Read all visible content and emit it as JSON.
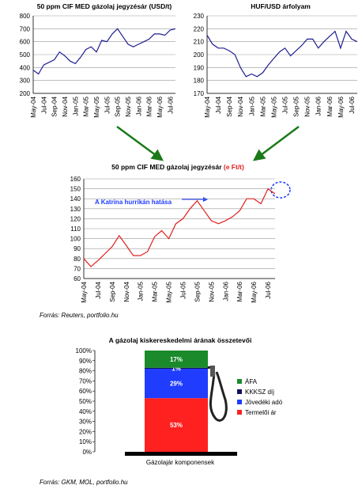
{
  "chart_data": [
    {
      "type": "line",
      "title": "50 ppm CIF MED gázolaj jegyzésár (USD/t)",
      "categories": [
        "May-04",
        null,
        "Jul-04",
        null,
        "Sep-04",
        null,
        "Nov-04",
        null,
        "Jan-05",
        null,
        "Mar-05",
        null,
        "May-05",
        null,
        "Jul-05",
        null,
        "Sep-05",
        null,
        "Nov-05",
        null,
        "Jan-06",
        null,
        "Mar-06",
        null,
        "May-06",
        null,
        "Jul-06",
        null
      ],
      "values": [
        380,
        350,
        420,
        440,
        460,
        520,
        490,
        450,
        430,
        480,
        540,
        560,
        520,
        610,
        600,
        660,
        700,
        640,
        580,
        560,
        580,
        600,
        620,
        660,
        660,
        650,
        690,
        700
      ],
      "color": "#1f1f8f",
      "ylim": [
        200,
        800
      ],
      "yticks": [
        200,
        300,
        400,
        500,
        600,
        700,
        800
      ],
      "grid": true
    },
    {
      "type": "line",
      "title": "HUF/USD árfolyam",
      "categories": [
        "May-04",
        null,
        "Jul-04",
        null,
        "Sep-04",
        null,
        "Nov-04",
        null,
        "Jan-05",
        null,
        "Mar-05",
        null,
        "May-05",
        null,
        "Jul-05",
        null,
        "Sep-05",
        null,
        "Nov-05",
        null,
        "Jan-06",
        null,
        "Mar-06",
        null,
        "May-06",
        null,
        "Jul-06",
        null
      ],
      "values": [
        215,
        208,
        205,
        205,
        203,
        200,
        190,
        183,
        185,
        183,
        186,
        192,
        197,
        202,
        205,
        199,
        203,
        207,
        212,
        212,
        205,
        210,
        214,
        218,
        205,
        218,
        212,
        210
      ],
      "color": "#1f1f8f",
      "ylim": [
        170,
        230
      ],
      "yticks": [
        170,
        180,
        190,
        200,
        210,
        220,
        230
      ],
      "grid": true
    },
    {
      "type": "line",
      "title": "50 ppm CIF MED gázolaj jegyzésár ",
      "title_unit": "(e Ft/t)",
      "annotation": "A Katrina hurrikán hatása",
      "categories": [
        "May-04",
        null,
        "Jul-04",
        null,
        "Sep-04",
        null,
        "Nov-04",
        null,
        "Jan-05",
        null,
        "Mar-05",
        null,
        "May-05",
        null,
        "Jul-05",
        null,
        "Sep-05",
        null,
        "Nov-05",
        null,
        "Jan-06",
        null,
        "Mar-06",
        null,
        "May-06",
        null,
        "Jul-06",
        null
      ],
      "values": [
        80,
        72,
        78,
        85,
        92,
        103,
        93,
        83,
        83,
        87,
        102,
        108,
        100,
        115,
        120,
        130,
        138,
        128,
        118,
        115,
        118,
        122,
        128,
        140,
        140,
        135,
        150,
        145
      ],
      "color": "#e02020",
      "ylim": [
        60,
        160
      ],
      "yticks": [
        60,
        70,
        80,
        90,
        100,
        110,
        120,
        130,
        140,
        150,
        160
      ],
      "grid": true
    },
    {
      "type": "stacked_bar",
      "title": "A gázolaj kiskereskedelmi árának összetevői",
      "categories": [
        "Gázolajár komponensek"
      ],
      "series": [
        {
          "name": "Termelői ár",
          "color": "#ff2020",
          "values": [
            53
          ],
          "value_labels": [
            "53%"
          ]
        },
        {
          "name": "Jövedéki adó",
          "color": "#1f3cff",
          "values": [
            29
          ],
          "value_labels": [
            "29%"
          ]
        },
        {
          "name": "KKKSZ díj",
          "color": "#101060",
          "values": [
            1
          ],
          "value_labels": [
            "1%"
          ]
        },
        {
          "name": "ÁFA",
          "color": "#1a8a2a",
          "values": [
            17
          ],
          "value_labels": [
            "17%"
          ]
        }
      ],
      "ylim": [
        0,
        100
      ],
      "yticks": [
        {
          "value": 0,
          "label": "0%"
        },
        {
          "value": 10,
          "label": "10%"
        },
        {
          "value": 20,
          "label": "20%"
        },
        {
          "value": 30,
          "label": "30%"
        },
        {
          "value": 40,
          "label": "40%"
        },
        {
          "value": 50,
          "label": "50%"
        },
        {
          "value": 60,
          "label": "60%"
        },
        {
          "value": 70,
          "label": "70%"
        },
        {
          "value": 80,
          "label": "80%"
        },
        {
          "value": 90,
          "label": "90%"
        },
        {
          "value": 100,
          "label": "100%"
        }
      ]
    }
  ],
  "sources": [
    "Forrás: Reuters, portfolio.hu",
    "Forrás: GKM, MOL, portfolio.hu"
  ]
}
